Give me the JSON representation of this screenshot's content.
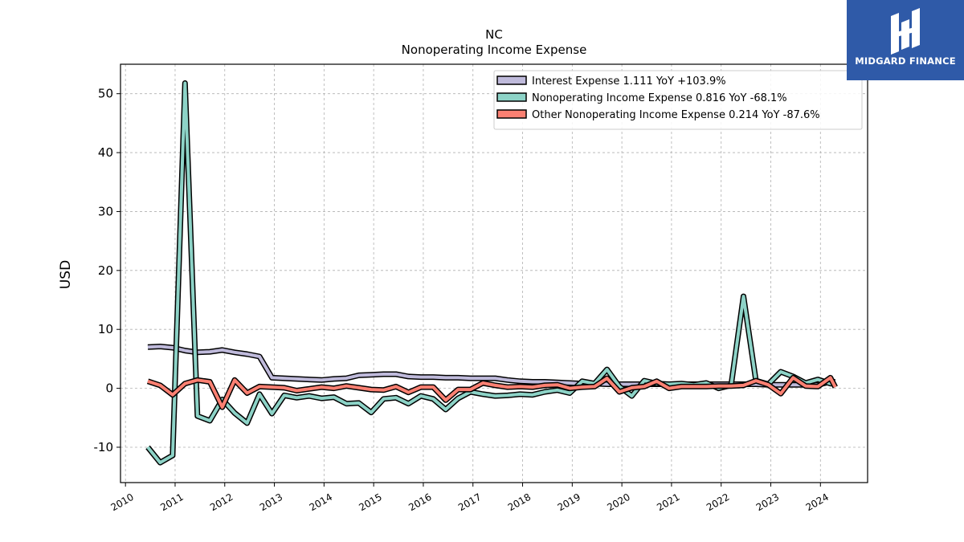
{
  "brand": {
    "name": "MIDGARD FINANCE",
    "background": "#2f5aa8"
  },
  "chart_data": {
    "type": "line",
    "title": "NC",
    "subtitle": "Nonoperating Income Expense",
    "ylabel": "USD",
    "xlabel": "",
    "xlim": [
      2009.9,
      2024.95
    ],
    "ylim": [
      -16,
      55
    ],
    "xticks": [
      2010,
      2011,
      2012,
      2013,
      2014,
      2015,
      2016,
      2017,
      2018,
      2019,
      2020,
      2021,
      2022,
      2023,
      2024
    ],
    "yticks": [
      -10,
      0,
      10,
      20,
      30,
      40,
      50
    ],
    "grid": true,
    "legend_position": "top-right",
    "series": [
      {
        "name": "Interest Expense",
        "legend_label": "Interest Expense  1.111 YoY +103.9%",
        "color": "#bfbadb",
        "x": [
          2010.45,
          2010.7,
          2010.95,
          2011.2,
          2011.45,
          2011.7,
          2011.95,
          2012.2,
          2012.45,
          2012.7,
          2012.95,
          2013.2,
          2013.45,
          2013.7,
          2013.95,
          2014.2,
          2014.45,
          2014.7,
          2014.95,
          2015.2,
          2015.45,
          2015.7,
          2015.95,
          2016.2,
          2016.45,
          2016.7,
          2016.95,
          2017.2,
          2017.45,
          2017.7,
          2017.95,
          2018.2,
          2018.45,
          2018.7,
          2018.95,
          2019.2,
          2019.45,
          2019.7,
          2019.95,
          2020.2,
          2020.45,
          2020.7,
          2020.95,
          2021.2,
          2021.45,
          2021.7,
          2021.95,
          2022.2,
          2022.45,
          2022.7,
          2022.95,
          2023.2,
          2023.45,
          2023.7,
          2023.95,
          2024.2,
          2024.3
        ],
        "values": [
          7.0,
          7.1,
          6.9,
          6.4,
          6.1,
          6.2,
          6.5,
          6.1,
          5.8,
          5.4,
          1.8,
          1.7,
          1.6,
          1.5,
          1.4,
          1.6,
          1.7,
          2.2,
          2.3,
          2.4,
          2.4,
          2.0,
          1.9,
          1.9,
          1.8,
          1.8,
          1.7,
          1.7,
          1.7,
          1.4,
          1.2,
          1.1,
          1.1,
          1.0,
          0.9,
          0.8,
          0.8,
          0.7,
          0.7,
          0.7,
          0.7,
          0.7,
          0.7,
          0.7,
          0.7,
          0.7,
          0.7,
          0.7,
          0.7,
          0.7,
          0.6,
          0.6,
          0.6,
          0.6,
          0.6,
          1.1,
          1.1
        ]
      },
      {
        "name": "Nonoperating Income Expense",
        "legend_label": "Nonoperating Income Expense  0.816 YoY -68.1%",
        "color": "#8dd3c7",
        "x": [
          2010.45,
          2010.7,
          2010.95,
          2011.2,
          2011.45,
          2011.7,
          2011.95,
          2012.2,
          2012.45,
          2012.7,
          2012.95,
          2013.2,
          2013.45,
          2013.7,
          2013.95,
          2014.2,
          2014.45,
          2014.7,
          2014.95,
          2015.2,
          2015.45,
          2015.7,
          2015.95,
          2016.2,
          2016.45,
          2016.7,
          2016.95,
          2017.2,
          2017.45,
          2017.7,
          2017.95,
          2018.2,
          2018.45,
          2018.7,
          2018.95,
          2019.2,
          2019.45,
          2019.7,
          2019.95,
          2020.2,
          2020.45,
          2020.7,
          2020.95,
          2021.2,
          2021.45,
          2021.7,
          2021.95,
          2022.2,
          2022.45,
          2022.7,
          2022.95,
          2023.2,
          2023.45,
          2023.7,
          2023.95,
          2024.2,
          2024.3
        ],
        "values": [
          -10.0,
          -12.6,
          -11.4,
          51.8,
          -4.7,
          -5.5,
          -1.9,
          -4.2,
          -5.9,
          -1.0,
          -4.3,
          -1.2,
          -1.6,
          -1.3,
          -1.7,
          -1.5,
          -2.6,
          -2.5,
          -4.1,
          -1.8,
          -1.6,
          -2.6,
          -1.3,
          -1.8,
          -3.6,
          -1.7,
          -0.6,
          -1.0,
          -1.3,
          -1.2,
          -1.0,
          -1.1,
          -0.6,
          -0.3,
          -0.8,
          1.2,
          0.8,
          3.2,
          0.3,
          -1.3,
          1.3,
          0.8,
          0.7,
          0.8,
          0.6,
          0.9,
          0.0,
          0.5,
          15.6,
          1.3,
          0.7,
          2.8,
          2.0,
          0.9,
          1.5,
          0.8,
          0.8
        ]
      },
      {
        "name": "Other Nonoperating Income Expense",
        "legend_label": "Other Nonoperating Income Expense  0.214 YoY -87.6%",
        "color": "#fb8072",
        "x": [
          2010.45,
          2010.7,
          2010.95,
          2011.2,
          2011.45,
          2011.7,
          2011.95,
          2012.2,
          2012.45,
          2012.7,
          2012.95,
          2013.2,
          2013.45,
          2013.7,
          2013.95,
          2014.2,
          2014.45,
          2014.7,
          2014.95,
          2015.2,
          2015.45,
          2015.7,
          2015.95,
          2016.2,
          2016.45,
          2016.7,
          2016.95,
          2017.2,
          2017.45,
          2017.7,
          2017.95,
          2018.2,
          2018.45,
          2018.7,
          2018.95,
          2019.2,
          2019.45,
          2019.7,
          2019.95,
          2020.2,
          2020.45,
          2020.7,
          2020.95,
          2021.2,
          2021.45,
          2021.7,
          2021.95,
          2022.2,
          2022.45,
          2022.7,
          2022.95,
          2023.2,
          2023.45,
          2023.7,
          2023.95,
          2024.2,
          2024.3
        ],
        "values": [
          1.2,
          0.5,
          -1.1,
          0.8,
          1.4,
          1.1,
          -3.2,
          1.4,
          -0.8,
          0.3,
          0.2,
          0.1,
          -0.4,
          -0.1,
          0.2,
          0.0,
          0.4,
          0.1,
          -0.2,
          -0.3,
          0.3,
          -0.7,
          0.2,
          0.2,
          -2.0,
          -0.2,
          -0.2,
          0.9,
          0.5,
          0.2,
          0.3,
          0.2,
          0.5,
          0.6,
          0.0,
          0.2,
          0.3,
          1.7,
          -0.6,
          0.1,
          0.3,
          1.2,
          0.0,
          0.3,
          0.3,
          0.3,
          0.4,
          0.4,
          0.5,
          1.3,
          0.6,
          -0.9,
          1.8,
          0.4,
          0.3,
          1.8,
          0.2
        ]
      }
    ]
  }
}
